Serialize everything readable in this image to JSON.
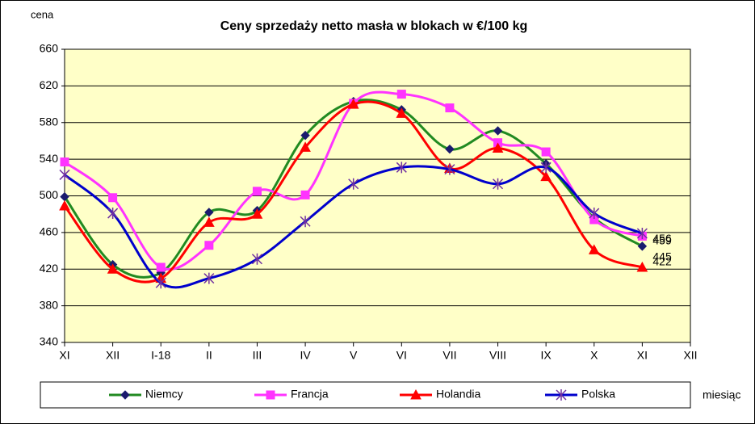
{
  "chart_data": {
    "type": "line",
    "title": "Ceny sprzedaży netto masła w blokach w €/100 kg",
    "y_label": "cena",
    "x_label": "miesiąc",
    "categories": [
      "XI",
      "XII",
      "I-18",
      "II",
      "III",
      "IV",
      "V",
      "VI",
      "VII",
      "VIII",
      "IX",
      "X",
      "XI",
      "XII"
    ],
    "series": [
      {
        "name": "Niemcy",
        "color": "#218a21",
        "marker": "diamond",
        "marker_color": "#1a1a6e",
        "values": [
          499,
          425,
          416,
          482,
          484,
          566,
          603,
          594,
          551,
          571,
          535,
          476,
          445,
          null
        ]
      },
      {
        "name": "Francja",
        "color": "#ff33ff",
        "marker": "square",
        "marker_color": "#ff33ff",
        "values": [
          537,
          498,
          422,
          446,
          505,
          501,
          601,
          611,
          596,
          558,
          548,
          474,
          456,
          null
        ]
      },
      {
        "name": "Holandia",
        "color": "#ff0000",
        "marker": "triangle",
        "marker_color": "#ff0000",
        "values": [
          489,
          420,
          410,
          471,
          480,
          553,
          600,
          590,
          530,
          552,
          521,
          441,
          422,
          null
        ]
      },
      {
        "name": "Polska",
        "color": "#0000cc",
        "marker": "asterisk",
        "marker_color": "#7030a0",
        "values": [
          523,
          481,
          405,
          410,
          431,
          472,
          513,
          531,
          529,
          513,
          531,
          481,
          459,
          null
        ]
      }
    ],
    "ylim": [
      340,
      660
    ],
    "yticks": [
      340,
      380,
      420,
      460,
      500,
      540,
      580,
      620,
      660
    ],
    "grid": true,
    "legend": "bottom",
    "plot_background": "#ffffc8"
  }
}
